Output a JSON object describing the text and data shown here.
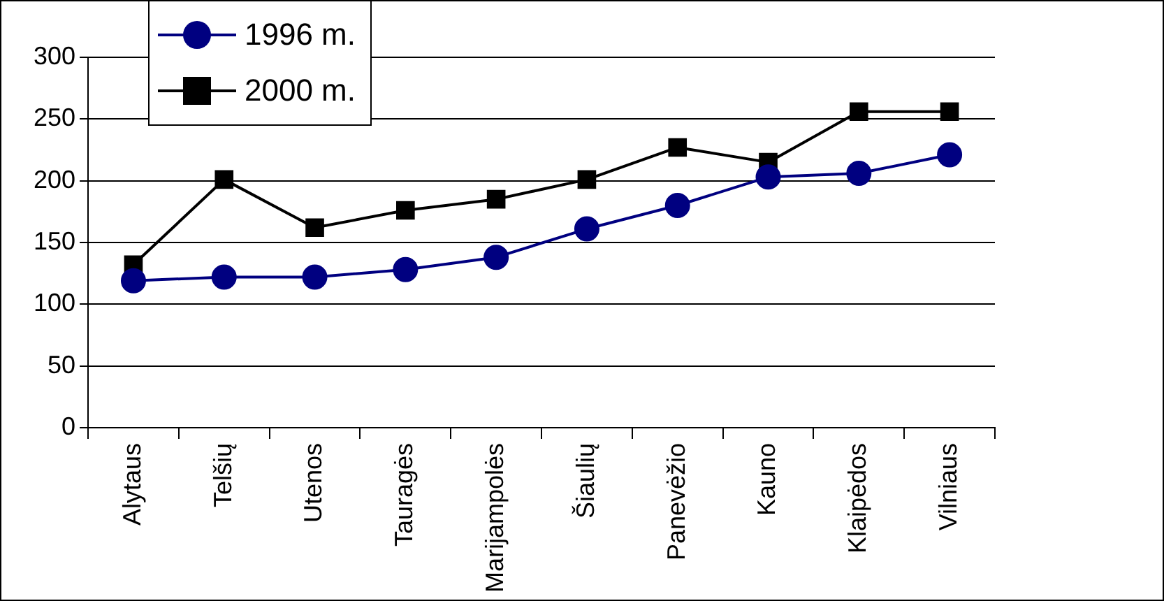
{
  "chart_data": {
    "type": "line",
    "categories": [
      "Alytaus",
      "Telšių",
      "Utenos",
      "Tauragės",
      "Marijampolės",
      "Šiaulių",
      "Panevėžio",
      "Kauno",
      "Klaipėdos",
      "Vilniaus"
    ],
    "series": [
      {
        "name": "1996 m.",
        "color": "#000080",
        "marker": "circle",
        "values": [
          119,
          122,
          122,
          128,
          138,
          161,
          180,
          203,
          206,
          221
        ]
      },
      {
        "name": "2000 m.",
        "color": "#000000",
        "marker": "square",
        "values": [
          132,
          201,
          162,
          176,
          185,
          201,
          227,
          215,
          256,
          256
        ]
      }
    ],
    "ylim": [
      0,
      300
    ],
    "yticks": [
      0,
      50,
      100,
      150,
      200,
      250,
      300
    ],
    "grid": "y",
    "legend": "top left",
    "line_style": "solid"
  }
}
